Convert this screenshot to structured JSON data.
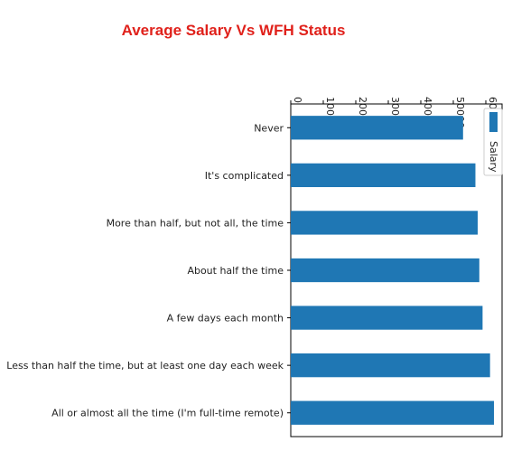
{
  "chart_data": {
    "type": "bar",
    "orientation": "horizontal",
    "title": "Average Salary Vs WFH Status",
    "title_color": "#e0211b",
    "bar_color": "#1f77b4",
    "xlabel": "",
    "ylabel": "",
    "xlim": [
      0,
      65000
    ],
    "x_ticks": [
      0,
      10000,
      20000,
      30000,
      40000,
      50000,
      60000
    ],
    "x_tick_labels": [
      "0",
      "10000",
      "20000",
      "30000",
      "40000",
      "50000",
      "60000"
    ],
    "x_tick_label_rotation": "vertical",
    "x_axis_position": "top",
    "grid": false,
    "legend": "top-right",
    "series": [
      {
        "name": "Salary",
        "color": "#1f77b4"
      }
    ],
    "categories": [
      "Never",
      "It's complicated",
      "More than half, but not all, the time",
      "About half the time",
      "A few days each month",
      "Less than half the time, but at least one day each week",
      "All or almost all the time (I'm full-time remote)"
    ],
    "values": [
      53000,
      56800,
      57500,
      58000,
      59000,
      61300,
      62500
    ]
  }
}
